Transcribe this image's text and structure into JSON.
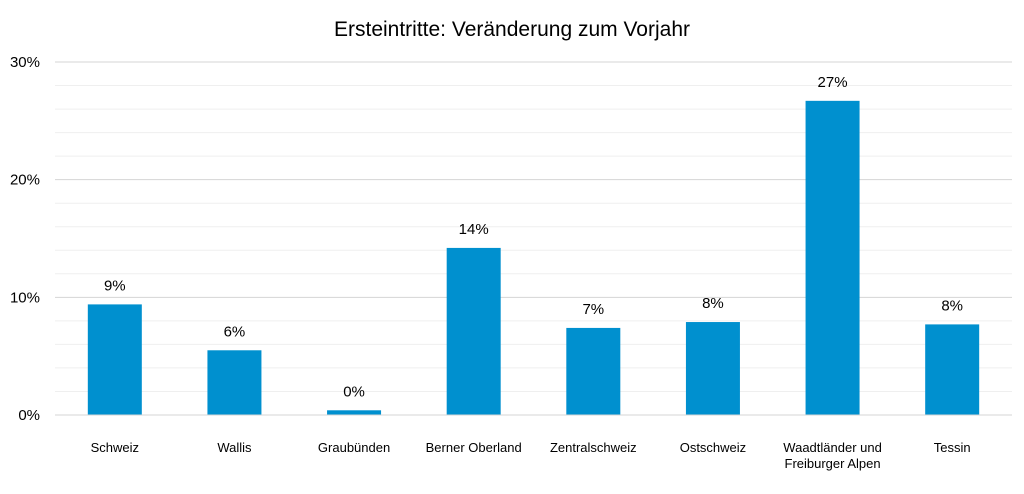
{
  "chart_data": {
    "type": "bar",
    "title": "Ersteintritte: Veränderung zum Vorjahr",
    "xlabel": "",
    "ylabel": "",
    "ylim": [
      0,
      30
    ],
    "y_unit": "%",
    "y_ticks": [
      0,
      10,
      20,
      30
    ],
    "y_tick_labels": [
      "0%",
      "10%",
      "20%",
      "30%"
    ],
    "grid": "major and minor horizontal gridlines",
    "legend": "none",
    "bar_color": "#0090CF",
    "categories": [
      [
        "Schweiz"
      ],
      [
        "Wallis"
      ],
      [
        "Graubünden"
      ],
      [
        "Berner Oberland"
      ],
      [
        "Zentralschweiz"
      ],
      [
        "Ostschweiz"
      ],
      [
        "Waadtländer und",
        "Freiburger Alpen"
      ],
      [
        "Tessin"
      ]
    ],
    "values": [
      9.4,
      5.5,
      0.4,
      14.2,
      7.4,
      7.9,
      26.7,
      7.7
    ],
    "data_labels": [
      "9%",
      "6%",
      "0%",
      "14%",
      "7%",
      "8%",
      "27%",
      "8%"
    ]
  }
}
